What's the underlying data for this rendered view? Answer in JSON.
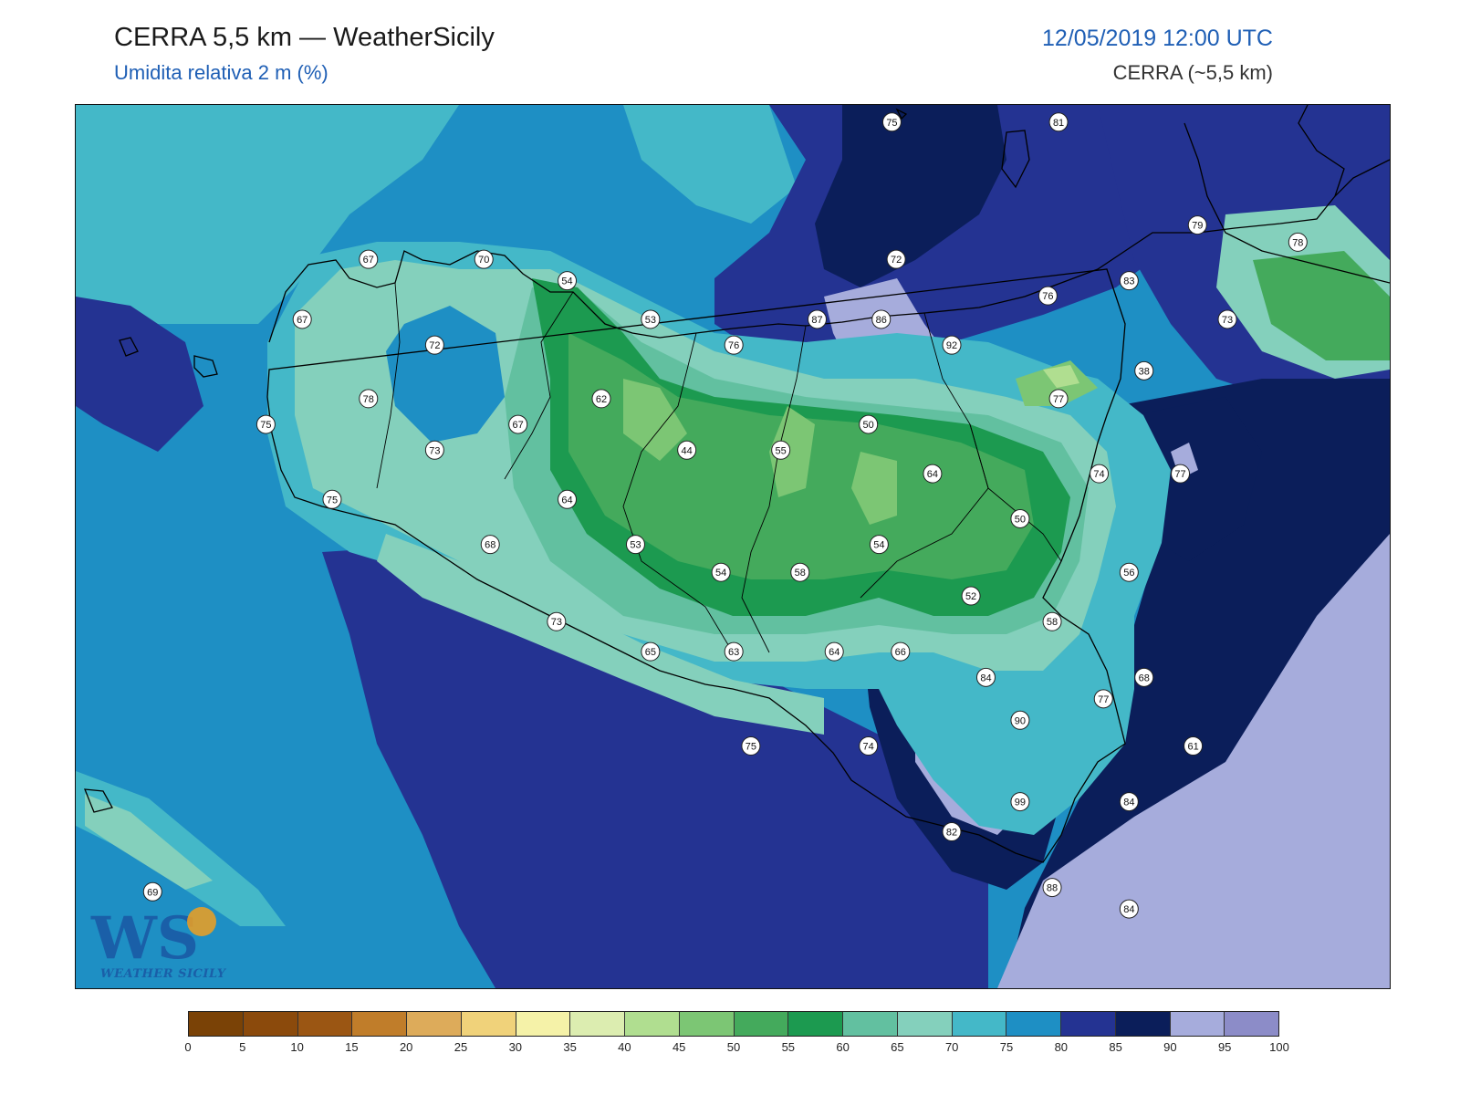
{
  "header": {
    "title": "CERRA 5,5 km — WeatherSicily",
    "subtitle": "Umidita relativa 2 m (%)",
    "datetime": "12/05/2019 12:00 UTC",
    "model": "CERRA (~5,5 km)"
  },
  "logo": {
    "text": "WEATHER SICILY",
    "mark": "WS"
  },
  "colorbar": {
    "ticks": [
      "0",
      "5",
      "10",
      "15",
      "20",
      "25",
      "30",
      "35",
      "40",
      "45",
      "50",
      "55",
      "60",
      "65",
      "70",
      "75",
      "80",
      "85",
      "90",
      "95",
      "100"
    ],
    "colors": [
      "#7a4206",
      "#8b4a0c",
      "#9b5613",
      "#c07d2a",
      "#ddab5a",
      "#f0d27a",
      "#f5f2a8",
      "#dcedb0",
      "#b0de90",
      "#7cc674",
      "#44aa5c",
      "#1c9a50",
      "#62c0a0",
      "#84d0bc",
      "#44b8c8",
      "#1e8fc4",
      "#243392",
      "#0b1e5a",
      "#a6acdc",
      "#8c8cc8"
    ]
  },
  "stations": [
    {
      "value": "75",
      "lon": 13.02,
      "lat": 39.19
    },
    {
      "value": "81",
      "lon": 13.8,
      "lat": 39.19
    },
    {
      "value": "79",
      "lon": 14.45,
      "lat": 38.71
    },
    {
      "value": "78",
      "lon": 14.92,
      "lat": 38.63
    },
    {
      "value": "67",
      "lon": 10.57,
      "lat": 38.55
    },
    {
      "value": "70",
      "lon": 11.11,
      "lat": 38.55
    },
    {
      "value": "54",
      "lon": 11.5,
      "lat": 38.45
    },
    {
      "value": "72",
      "lon": 13.04,
      "lat": 38.55
    },
    {
      "value": "83",
      "lon": 14.13,
      "lat": 38.45
    },
    {
      "value": "76",
      "lon": 13.75,
      "lat": 38.38
    },
    {
      "value": "67",
      "lon": 10.26,
      "lat": 38.27
    },
    {
      "value": "53",
      "lon": 11.89,
      "lat": 38.27
    },
    {
      "value": "87",
      "lon": 12.67,
      "lat": 38.27
    },
    {
      "value": "86",
      "lon": 12.97,
      "lat": 38.27
    },
    {
      "value": "72",
      "lon": 10.88,
      "lat": 38.15
    },
    {
      "value": "76",
      "lon": 12.28,
      "lat": 38.15
    },
    {
      "value": "92",
      "lon": 13.3,
      "lat": 38.15
    },
    {
      "value": "73",
      "lon": 14.59,
      "lat": 38.27
    },
    {
      "value": "78",
      "lon": 10.57,
      "lat": 37.9
    },
    {
      "value": "62",
      "lon": 11.66,
      "lat": 37.9
    },
    {
      "value": "38",
      "lon": 14.2,
      "lat": 38.03
    },
    {
      "value": "77",
      "lon": 13.8,
      "lat": 37.9
    },
    {
      "value": "75",
      "lon": 10.09,
      "lat": 37.78
    },
    {
      "value": "67",
      "lon": 11.27,
      "lat": 37.78
    },
    {
      "value": "50",
      "lon": 12.91,
      "lat": 37.78
    },
    {
      "value": "73",
      "lon": 10.88,
      "lat": 37.66
    },
    {
      "value": "44",
      "lon": 12.06,
      "lat": 37.66
    },
    {
      "value": "55",
      "lon": 12.5,
      "lat": 37.66
    },
    {
      "value": "64",
      "lon": 13.21,
      "lat": 37.55
    },
    {
      "value": "74",
      "lon": 13.99,
      "lat": 37.55
    },
    {
      "value": "77",
      "lon": 14.37,
      "lat": 37.55
    },
    {
      "value": "75",
      "lon": 10.4,
      "lat": 37.43
    },
    {
      "value": "64",
      "lon": 11.5,
      "lat": 37.43
    },
    {
      "value": "50",
      "lon": 13.62,
      "lat": 37.34
    },
    {
      "value": "68",
      "lon": 11.14,
      "lat": 37.22
    },
    {
      "value": "53",
      "lon": 11.82,
      "lat": 37.22
    },
    {
      "value": "54",
      "lon": 12.96,
      "lat": 37.22
    },
    {
      "value": "54",
      "lon": 12.22,
      "lat": 37.09
    },
    {
      "value": "58",
      "lon": 12.59,
      "lat": 37.09
    },
    {
      "value": "56",
      "lon": 14.13,
      "lat": 37.09
    },
    {
      "value": "52",
      "lon": 13.39,
      "lat": 36.98
    },
    {
      "value": "73",
      "lon": 11.45,
      "lat": 36.86
    },
    {
      "value": "58",
      "lon": 13.77,
      "lat": 36.86
    },
    {
      "value": "65",
      "lon": 11.89,
      "lat": 36.72
    },
    {
      "value": "63",
      "lon": 12.28,
      "lat": 36.72
    },
    {
      "value": "64",
      "lon": 12.75,
      "lat": 36.72
    },
    {
      "value": "66",
      "lon": 13.06,
      "lat": 36.72
    },
    {
      "value": "84",
      "lon": 13.46,
      "lat": 36.6
    },
    {
      "value": "68",
      "lon": 14.2,
      "lat": 36.6
    },
    {
      "value": "77",
      "lon": 14.01,
      "lat": 36.5
    },
    {
      "value": "90",
      "lon": 13.62,
      "lat": 36.4
    },
    {
      "value": "61",
      "lon": 14.43,
      "lat": 36.28
    },
    {
      "value": "75",
      "lon": 12.36,
      "lat": 36.28
    },
    {
      "value": "74",
      "lon": 12.91,
      "lat": 36.28
    },
    {
      "value": "99",
      "lon": 13.62,
      "lat": 36.02
    },
    {
      "value": "84",
      "lon": 14.13,
      "lat": 36.02
    },
    {
      "value": "82",
      "lon": 13.3,
      "lat": 35.88
    },
    {
      "value": "69",
      "lon": 9.56,
      "lat": 35.6
    },
    {
      "value": "88",
      "lon": 13.77,
      "lat": 35.62
    },
    {
      "value": "84",
      "lon": 14.13,
      "lat": 35.52
    }
  ]
}
